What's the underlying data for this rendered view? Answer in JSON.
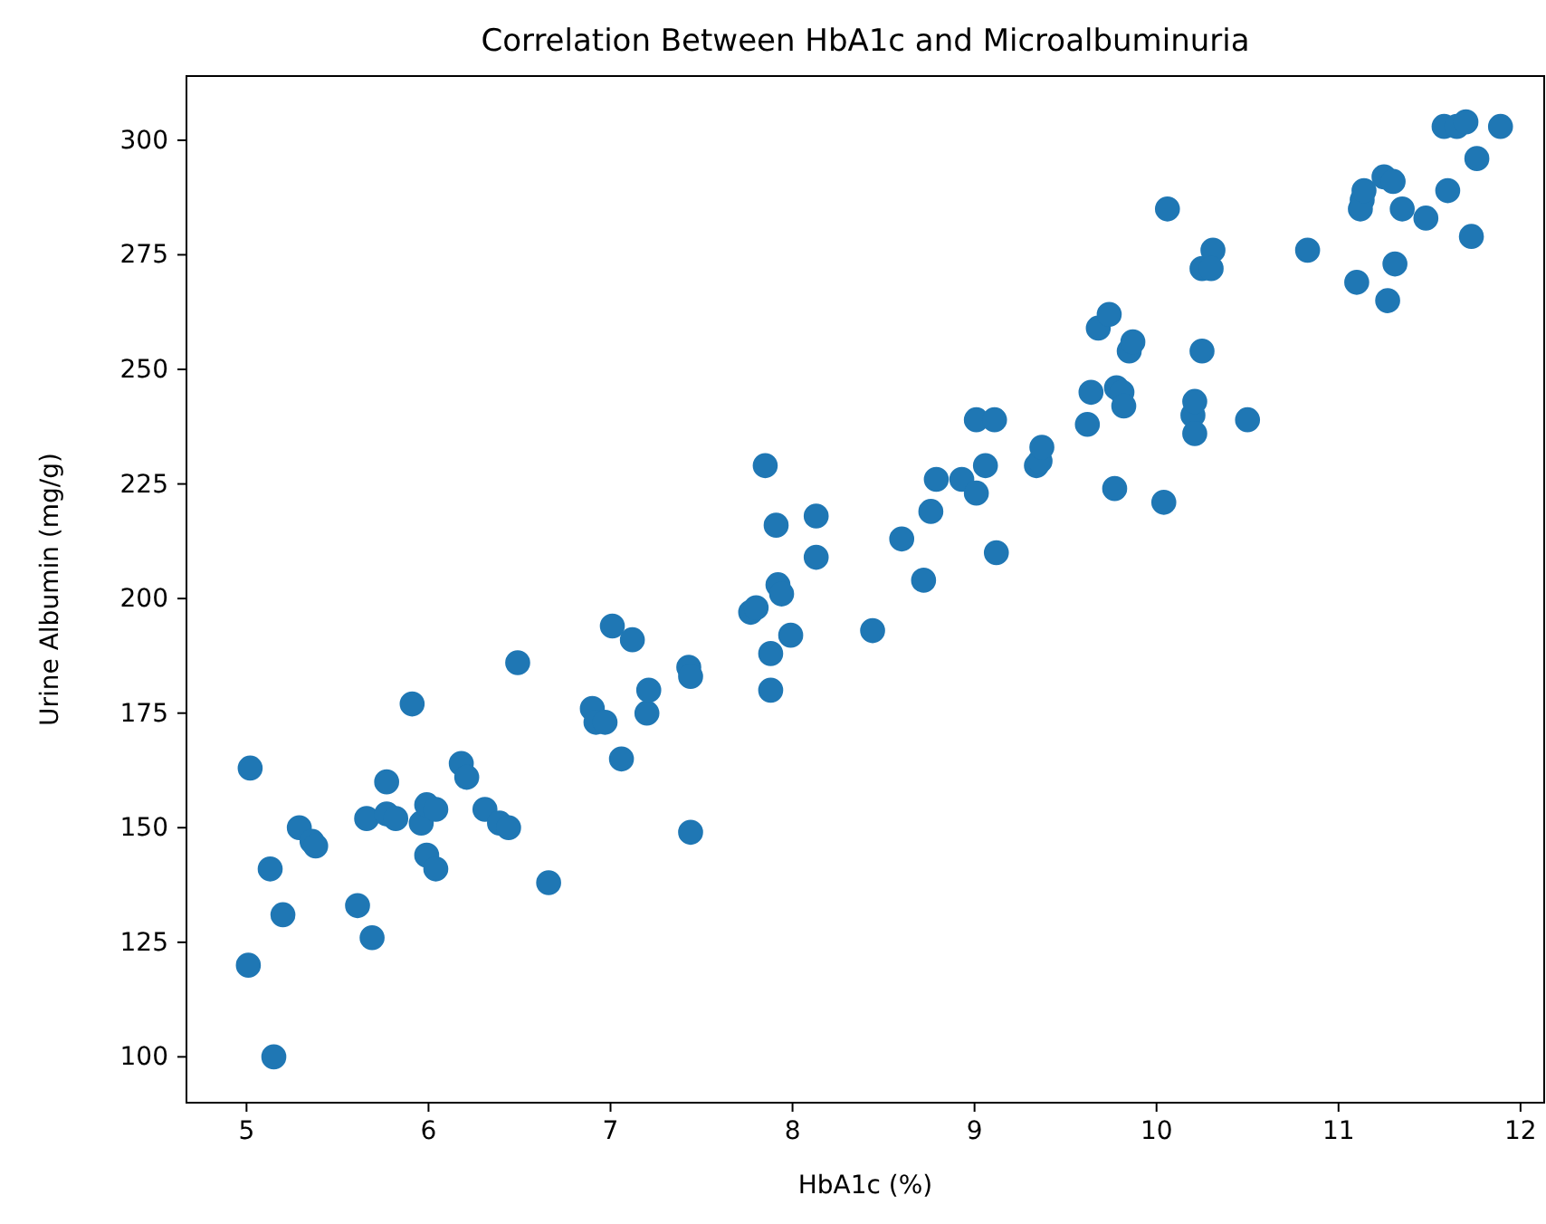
{
  "chart_data": {
    "type": "scatter",
    "title": "Correlation Between HbA1c and Microalbuminuria",
    "xlabel": "HbA1c (%)",
    "ylabel": "Urine Albumin (mg/g)",
    "xlim": [
      4.67,
      12.13
    ],
    "ylim": [
      90,
      314
    ],
    "xticks": [
      5,
      6,
      7,
      8,
      9,
      10,
      11,
      12
    ],
    "yticks": [
      100,
      125,
      150,
      175,
      200,
      225,
      250,
      275,
      300
    ],
    "grid": false,
    "marker": "circle",
    "series": [
      {
        "color": "#1f77b4",
        "x": [
          5.02,
          5.01,
          5.13,
          5.15,
          5.2,
          5.29,
          5.36,
          5.38,
          5.61,
          5.66,
          5.69,
          5.77,
          5.77,
          5.82,
          5.91,
          5.96,
          5.99,
          5.99,
          6.04,
          6.04,
          6.18,
          6.21,
          6.31,
          6.39,
          6.44,
          6.49,
          6.66,
          6.9,
          6.92,
          6.97,
          7.01,
          7.06,
          7.12,
          7.2,
          7.21,
          7.43,
          7.44,
          7.44,
          7.77,
          7.8,
          7.85,
          7.88,
          7.88,
          7.91,
          7.92,
          7.94,
          7.99,
          8.13,
          8.13,
          8.44,
          8.6,
          8.72,
          8.76,
          8.79,
          8.93,
          9.01,
          9.01,
          9.06,
          9.11,
          9.12,
          9.34,
          9.36,
          9.37,
          9.62,
          9.64,
          9.68,
          9.74,
          9.77,
          9.78,
          9.81,
          9.82,
          9.85,
          9.87,
          10.04,
          10.06,
          10.2,
          10.21,
          10.21,
          10.25,
          10.25,
          10.31,
          10.3,
          10.5,
          10.83,
          11.1,
          11.13,
          11.12,
          11.14,
          11.25,
          11.27,
          11.3,
          11.31,
          11.35,
          11.48,
          11.58,
          11.6,
          11.65,
          11.7,
          11.73,
          11.76,
          11.89
        ],
        "values": [
          163,
          120,
          141,
          100,
          131,
          150,
          147,
          146,
          133,
          152,
          126,
          160,
          153,
          152,
          177,
          151,
          155,
          144,
          141,
          154,
          164,
          161,
          154,
          151,
          150,
          186,
          138,
          176,
          173,
          173,
          194,
          165,
          191,
          175,
          180,
          185,
          183,
          149,
          197,
          198,
          229,
          188,
          180,
          216,
          203,
          201,
          192,
          218,
          209,
          193,
          213,
          204,
          219,
          226,
          226,
          223,
          239,
          229,
          239,
          210,
          229,
          230,
          233,
          238,
          245,
          259,
          262,
          224,
          246,
          245,
          242,
          254,
          256,
          221,
          285,
          240,
          243,
          236,
          272,
          254,
          276,
          272,
          239,
          276,
          269,
          287,
          285,
          289,
          292,
          265,
          291,
          273,
          285,
          283,
          303,
          289,
          303,
          304,
          279,
          296,
          303
        ]
      }
    ]
  }
}
